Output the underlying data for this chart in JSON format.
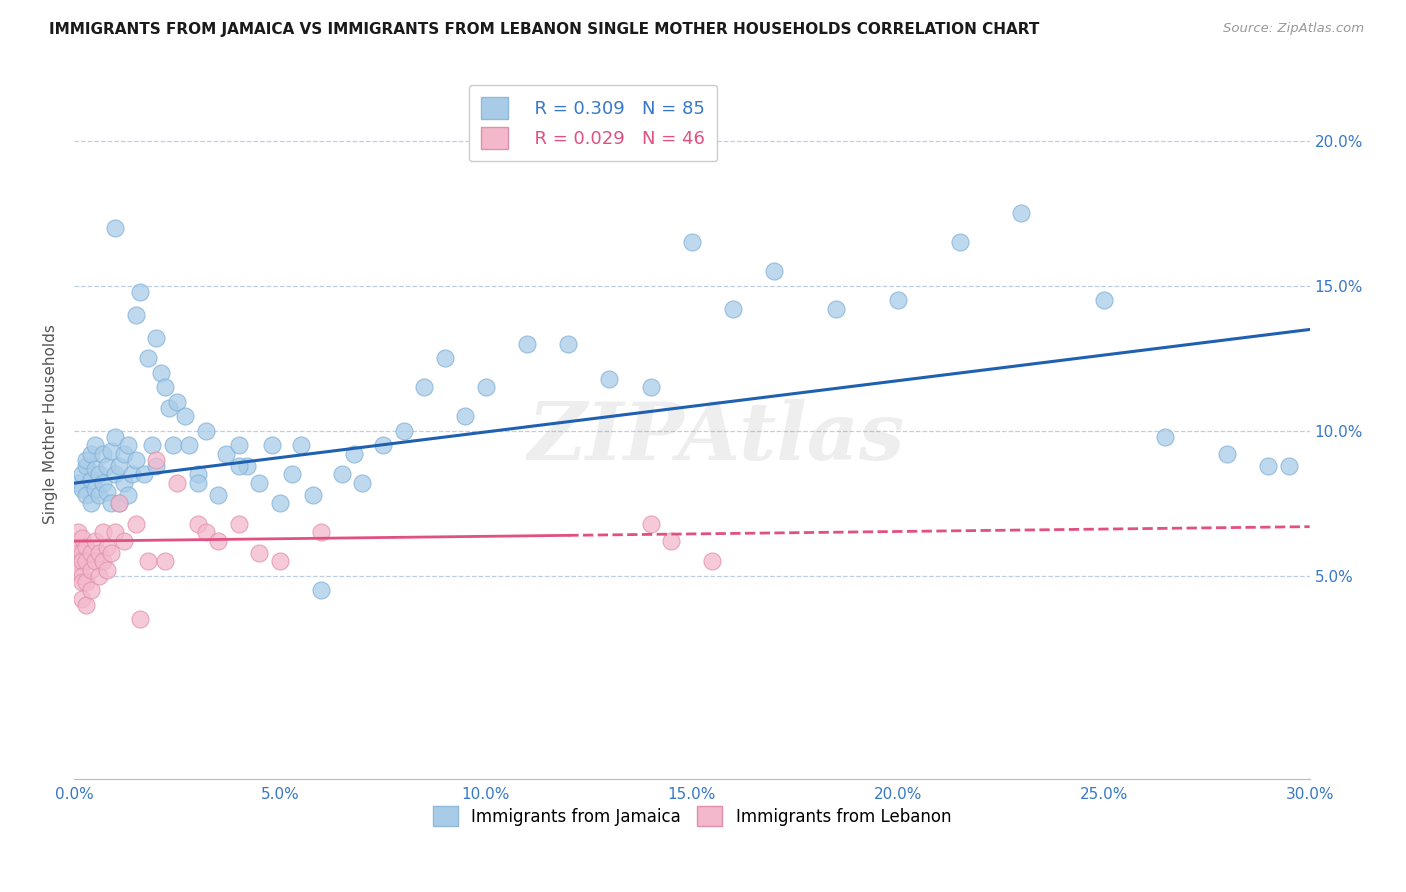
{
  "title": "IMMIGRANTS FROM JAMAICA VS IMMIGRANTS FROM LEBANON SINGLE MOTHER HOUSEHOLDS CORRELATION CHART",
  "source": "Source: ZipAtlas.com",
  "ylabel_label": "Single Mother Households",
  "xlim": [
    0.0,
    0.3
  ],
  "ylim": [
    -0.02,
    0.225
  ],
  "xticks": [
    0.0,
    0.05,
    0.1,
    0.15,
    0.2,
    0.25,
    0.3
  ],
  "yticks": [
    0.05,
    0.1,
    0.15,
    0.2
  ],
  "ytick_labels": [
    "5.0%",
    "10.0%",
    "15.0%",
    "20.0%"
  ],
  "xtick_labels": [
    "0.0%",
    "5.0%",
    "10.0%",
    "15.0%",
    "20.0%",
    "25.0%",
    "30.0%"
  ],
  "jamaica_color": "#a8cce8",
  "lebanon_color": "#f4b8cc",
  "jamaica_line_color": "#2060b0",
  "lebanon_line_color": "#e05080",
  "jamaica_R": 0.309,
  "jamaica_N": 85,
  "lebanon_R": 0.029,
  "lebanon_N": 46,
  "watermark": "ZIPAtlas",
  "jamaica_x": [
    0.001,
    0.002,
    0.002,
    0.003,
    0.003,
    0.003,
    0.004,
    0.004,
    0.004,
    0.005,
    0.005,
    0.005,
    0.006,
    0.006,
    0.007,
    0.007,
    0.008,
    0.008,
    0.009,
    0.009,
    0.01,
    0.01,
    0.011,
    0.011,
    0.012,
    0.012,
    0.013,
    0.013,
    0.014,
    0.015,
    0.015,
    0.016,
    0.017,
    0.018,
    0.019,
    0.02,
    0.021,
    0.022,
    0.023,
    0.024,
    0.025,
    0.027,
    0.028,
    0.03,
    0.032,
    0.035,
    0.037,
    0.04,
    0.042,
    0.045,
    0.048,
    0.05,
    0.053,
    0.055,
    0.058,
    0.06,
    0.065,
    0.068,
    0.07,
    0.075,
    0.08,
    0.085,
    0.09,
    0.095,
    0.1,
    0.11,
    0.12,
    0.13,
    0.14,
    0.15,
    0.16,
    0.17,
    0.185,
    0.2,
    0.215,
    0.23,
    0.25,
    0.265,
    0.28,
    0.29,
    0.295,
    0.01,
    0.02,
    0.03,
    0.04
  ],
  "jamaica_y": [
    0.082,
    0.085,
    0.08,
    0.088,
    0.078,
    0.09,
    0.083,
    0.092,
    0.075,
    0.087,
    0.08,
    0.095,
    0.085,
    0.078,
    0.092,
    0.082,
    0.088,
    0.079,
    0.093,
    0.075,
    0.085,
    0.098,
    0.088,
    0.075,
    0.092,
    0.082,
    0.095,
    0.078,
    0.085,
    0.14,
    0.09,
    0.148,
    0.085,
    0.125,
    0.095,
    0.132,
    0.12,
    0.115,
    0.108,
    0.095,
    0.11,
    0.105,
    0.095,
    0.085,
    0.1,
    0.078,
    0.092,
    0.095,
    0.088,
    0.082,
    0.095,
    0.075,
    0.085,
    0.095,
    0.078,
    0.045,
    0.085,
    0.092,
    0.082,
    0.095,
    0.1,
    0.115,
    0.125,
    0.105,
    0.115,
    0.13,
    0.13,
    0.118,
    0.115,
    0.165,
    0.142,
    0.155,
    0.142,
    0.145,
    0.165,
    0.175,
    0.145,
    0.098,
    0.092,
    0.088,
    0.088,
    0.17,
    0.088,
    0.082,
    0.088
  ],
  "lebanon_x": [
    0.001,
    0.001,
    0.001,
    0.001,
    0.001,
    0.002,
    0.002,
    0.002,
    0.002,
    0.002,
    0.002,
    0.003,
    0.003,
    0.003,
    0.003,
    0.004,
    0.004,
    0.004,
    0.005,
    0.005,
    0.006,
    0.006,
    0.007,
    0.007,
    0.008,
    0.008,
    0.009,
    0.01,
    0.011,
    0.012,
    0.015,
    0.016,
    0.018,
    0.02,
    0.022,
    0.025,
    0.03,
    0.032,
    0.035,
    0.04,
    0.045,
    0.05,
    0.06,
    0.14,
    0.145,
    0.155
  ],
  "lebanon_y": [
    0.065,
    0.06,
    0.058,
    0.055,
    0.052,
    0.063,
    0.058,
    0.055,
    0.05,
    0.048,
    0.042,
    0.06,
    0.055,
    0.048,
    0.04,
    0.058,
    0.052,
    0.045,
    0.062,
    0.055,
    0.058,
    0.05,
    0.065,
    0.055,
    0.06,
    0.052,
    0.058,
    0.065,
    0.075,
    0.062,
    0.068,
    0.035,
    0.055,
    0.09,
    0.055,
    0.082,
    0.068,
    0.065,
    0.062,
    0.068,
    0.058,
    0.055,
    0.065,
    0.068,
    0.062,
    0.055
  ]
}
